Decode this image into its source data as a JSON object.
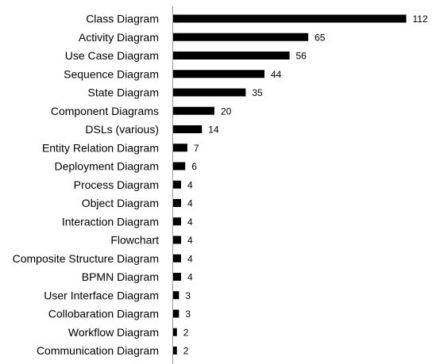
{
  "chart_data": {
    "type": "bar",
    "orientation": "horizontal",
    "categories": [
      "Class Diagram",
      "Activity Diagram",
      "Use Case Diagram",
      "Sequence Diagram",
      "State Diagram",
      "Component Diagrams",
      "DSLs (various)",
      "Entity Relation Diagram",
      "Deployment Diagram",
      "Process Diagram",
      "Object Diagram",
      "Interaction Diagram",
      "Flowchart",
      "Composite Structure Diagram",
      "BPMN Diagram",
      "User Interface Diagram",
      "Collobaration Diagram",
      "Workflow Diagram",
      "Communication Diagram"
    ],
    "values": [
      112,
      65,
      56,
      44,
      35,
      20,
      14,
      7,
      6,
      4,
      4,
      4,
      4,
      4,
      4,
      3,
      3,
      2,
      2
    ],
    "data_labels": [
      "112",
      "65",
      "56",
      "44",
      "35",
      "20",
      "14",
      "7",
      "6",
      "4",
      "4",
      "4",
      "4",
      "4",
      "4",
      "3",
      "3",
      "2",
      "2"
    ],
    "title": "",
    "xlabel": "",
    "ylabel": "",
    "xlim": [
      0,
      112
    ],
    "bar_color": "#000000",
    "grid": false,
    "legend": "none"
  }
}
